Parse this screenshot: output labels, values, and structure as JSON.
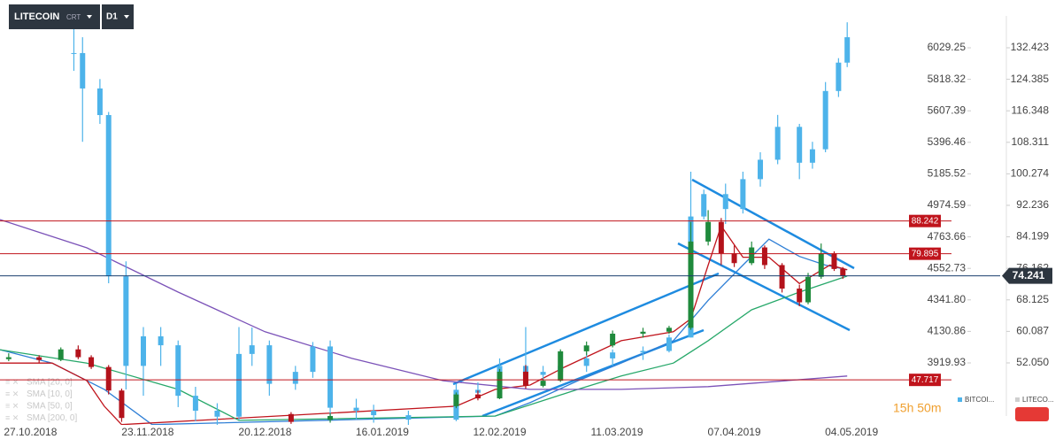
{
  "header": {
    "symbol": "LITECOIN",
    "mode": "CRT",
    "timeframe": "D1"
  },
  "timer": "15h 50m",
  "chart_data": {
    "type": "candlestick",
    "xlim": [
      "2018-10-20",
      "2019-05-27"
    ],
    "xticks": [
      {
        "value": "2018-10-27",
        "label": "27.10.2018"
      },
      {
        "value": "2018-11-23",
        "label": "23.11.2018"
      },
      {
        "value": "2018-12-20",
        "label": "20.12.2018"
      },
      {
        "value": "2019-01-16",
        "label": "16.01.2019"
      },
      {
        "value": "2019-02-12",
        "label": "12.02.2019"
      },
      {
        "value": "2019-03-11",
        "label": "11.03.2019"
      },
      {
        "value": "2019-04-07",
        "label": "07.04.2019"
      },
      {
        "value": "2019-05-04",
        "label": "04.05.2019"
      }
    ],
    "ylim": [
      36.24,
      144.61
    ],
    "yticks": [
      132.423,
      124.385,
      116.348,
      108.311,
      100.274,
      92.236,
      84.199,
      76.162,
      68.125,
      60.087,
      {
        "value": 52.05,
        "label": "52.050"
      }
    ],
    "y2lim": [
      3505.2,
      6349.2
    ],
    "y2ticks": [
      6029.25,
      5818.32,
      5607.39,
      5396.46,
      5185.52,
      4974.59,
      4763.66,
      4552.73,
      {
        "value": 4341.8,
        "label": "4341.80"
      },
      4130.86,
      3919.93
    ],
    "series": [
      {
        "name": "BITCOI...",
        "axis": "y2",
        "color": "#4db3ea",
        "x": [
          "2018-11-06",
          "2018-11-08",
          "2018-11-12",
          "2018-11-14",
          "2018-11-18",
          "2018-11-22",
          "2018-11-26",
          "2018-11-30",
          "2018-12-04",
          "2018-12-09",
          "2018-12-14",
          "2018-12-17",
          "2018-12-21",
          "2018-12-27",
          "2018-12-31",
          "2019-01-04",
          "2019-01-10",
          "2019-01-14",
          "2019-01-22",
          "2019-02-02",
          "2019-02-07",
          "2019-02-12",
          "2019-02-18",
          "2019-02-22",
          "2019-02-26",
          "2019-03-04",
          "2019-03-10",
          "2019-03-17",
          "2019-03-23",
          "2019-03-28",
          "2019-03-31",
          "2019-04-05",
          "2019-04-09",
          "2019-04-13",
          "2019-04-17",
          "2019-04-22",
          "2019-04-25",
          "2019-04-28",
          "2019-05-01",
          "2019-05-03"
        ],
        "open": [
          5994,
          5994,
          5757,
          5579,
          4500,
          3900,
          4098,
          4038,
          3700,
          3600,
          3560,
          3980,
          4038,
          3780,
          3860,
          4030,
          3620,
          3600,
          3570,
          3540,
          3740,
          3720,
          3900,
          3840,
          3860,
          3900,
          3950,
          3990,
          4000,
          4090,
          4900,
          5050,
          4950,
          5150,
          5280,
          5500,
          5260,
          5350,
          5740,
          5930
        ],
        "high": [
          6231,
          6100,
          5820,
          5600,
          4600,
          4160,
          4160,
          4070,
          3760,
          3650,
          4160,
          4157,
          4070,
          3900,
          4060,
          4070,
          3680,
          3640,
          3600,
          3780,
          3790,
          3950,
          4160,
          3900,
          3930,
          3990,
          4010,
          4030,
          4110,
          5200,
          5080,
          5120,
          5200,
          5330,
          5580,
          5520,
          5400,
          5800,
          5960,
          6200
        ],
        "low": [
          5875,
          5400,
          5520,
          4453,
          3742,
          3700,
          3900,
          3624,
          3530,
          3505,
          3540,
          3900,
          3700,
          3740,
          3820,
          3560,
          3540,
          3520,
          3505,
          3530,
          3680,
          3700,
          3800,
          3800,
          3840,
          3860,
          3900,
          3940,
          3990,
          4090,
          4880,
          4850,
          4920,
          5100,
          5250,
          5150,
          5220,
          5330,
          5700,
          5900
        ],
        "close": [
          5994,
          5757,
          5579,
          4500,
          3900,
          4098,
          4038,
          3700,
          3600,
          3560,
          3980,
          4038,
          3780,
          3860,
          4030,
          3620,
          3600,
          3570,
          3540,
          3740,
          3720,
          3900,
          3840,
          3860,
          3900,
          3950,
          3990,
          4000,
          4090,
          4900,
          5050,
          4950,
          5150,
          5280,
          5500,
          5260,
          5350,
          5740,
          5930,
          6100
        ]
      },
      {
        "name": "LITECO...",
        "up_color": "#1f8a3c",
        "down_color": "#b3121b",
        "x": [
          "2018-10-22",
          "2018-10-29",
          "2018-11-03",
          "2018-11-07",
          "2018-11-10",
          "2018-11-14",
          "2018-11-17",
          "2018-12-26",
          "2019-01-04",
          "2019-02-02",
          "2019-02-07",
          "2019-02-12",
          "2019-02-18",
          "2019-02-22",
          "2019-02-26",
          "2019-03-04",
          "2019-03-10",
          "2019-03-17",
          "2019-03-23",
          "2019-03-28",
          "2019-04-01",
          "2019-04-04",
          "2019-04-07",
          "2019-04-11",
          "2019-04-14",
          "2019-04-18",
          "2019-04-22",
          "2019-04-24",
          "2019-04-27",
          "2019-04-30",
          "2019-05-02"
        ],
        "open": [
          53,
          53.5,
          52.8,
          55.5,
          53.5,
          51,
          45,
          39,
          37.5,
          41,
          44,
          43,
          49.8,
          46.2,
          47.5,
          55,
          56.5,
          59.5,
          60,
          61,
          83,
          88,
          80,
          77.5,
          81.5,
          77,
          71,
          67.5,
          74,
          80,
          76
        ],
        "high": [
          54.5,
          54,
          56,
          56.5,
          54,
          51.5,
          45.5,
          39.5,
          39.2,
          44.5,
          45,
          50.5,
          51.5,
          48,
          55.5,
          57.5,
          60.3,
          61,
          61.5,
          88,
          91,
          89,
          82,
          83,
          82,
          77.5,
          72,
          75,
          82.5,
          80.5,
          76.5
        ],
        "low": [
          52.5,
          52,
          52.5,
          53,
          50.5,
          44,
          37,
          36.5,
          36.8,
          40.5,
          42.5,
          42.8,
          45.5,
          45.8,
          47.2,
          54,
          56,
          58.5,
          59.5,
          60.5,
          82,
          77,
          76.5,
          77,
          76,
          70,
          66.5,
          67,
          73.5,
          75.5,
          73.5
        ],
        "close": [
          53.5,
          52.8,
          55.5,
          53.5,
          51,
          45,
          38,
          37,
          38.5,
          44,
          43,
          49.8,
          46.2,
          47.5,
          55,
          56.5,
          59.5,
          60,
          61,
          83,
          88,
          80,
          77.5,
          81.5,
          77,
          71,
          67.5,
          74,
          80,
          76,
          74.241
        ]
      }
    ],
    "indicators": [
      {
        "name": "SMA [20, 0]",
        "color": "#2f7fd6",
        "x": [
          "2018-10-20",
          "2018-11-01",
          "2018-11-13",
          "2018-11-24",
          "2019-02-11",
          "2019-02-19",
          "2019-03-02",
          "2019-03-12",
          "2019-03-24",
          "2019-04-01",
          "2019-04-09",
          "2019-04-15",
          "2019-04-22",
          "2019-04-28",
          "2019-05-03"
        ],
        "values": [
          55.4,
          52,
          45.3,
          36.3,
          38.5,
          41.9,
          47.5,
          52,
          57.7,
          68,
          77,
          83.6,
          79.2,
          77,
          75.8
        ]
      },
      {
        "name": "SMA [10, 0]",
        "color": "#c0141c",
        "x": [
          "2018-10-20",
          "2018-11-01",
          "2018-11-09",
          "2018-11-13",
          "2018-11-17",
          "2019-02-02",
          "2019-02-11",
          "2019-02-19",
          "2019-02-27",
          "2019-03-12",
          "2019-03-24",
          "2019-03-28",
          "2019-04-01",
          "2019-04-04",
          "2019-04-09",
          "2019-04-15",
          "2019-04-22",
          "2019-04-29",
          "2019-05-03"
        ],
        "values": [
          52,
          52,
          47.5,
          41,
          36.3,
          41,
          45.3,
          46.4,
          51,
          57.7,
          60,
          63.3,
          77,
          87,
          79,
          79,
          72.3,
          77,
          75.8
        ]
      },
      {
        "name": "SMA [50, 0]",
        "color": "#27a86a",
        "x": [
          "2018-10-20",
          "2018-11-09",
          "2018-11-30",
          "2018-12-14",
          "2019-02-11",
          "2019-03-02",
          "2019-03-12",
          "2019-03-24",
          "2019-04-01",
          "2019-04-11",
          "2019-04-22",
          "2019-05-03"
        ],
        "values": [
          55.4,
          52,
          45.3,
          37.4,
          38.5,
          45.3,
          48.7,
          52,
          57.7,
          65.6,
          70.1,
          74.2
        ]
      },
      {
        "name": "SMA [200, 0]",
        "color": "#7b52b8",
        "x": [
          "2018-10-20",
          "2018-11-09",
          "2018-11-30",
          "2018-12-20",
          "2019-01-09",
          "2019-01-30",
          "2019-02-19",
          "2019-03-12",
          "2019-04-01",
          "2019-05-03"
        ],
        "values": [
          88.6,
          81.4,
          70.1,
          60,
          53.2,
          47.5,
          45.3,
          45.3,
          46,
          48.7
        ]
      }
    ],
    "levels": [
      88.242,
      79.895,
      47.717
    ],
    "last_price": 74.241
  }
}
